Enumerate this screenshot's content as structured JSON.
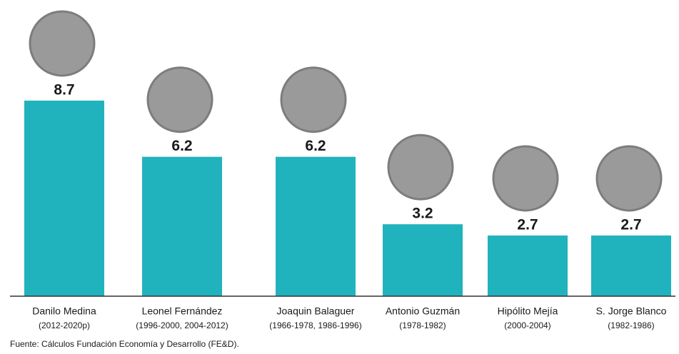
{
  "chart_data": {
    "type": "bar",
    "categories": [
      "Danilo Medina",
      "Leonel Fernández",
      "Joaquin Balaguer",
      "Antonio Guzmán",
      "Hipólito Mejía",
      "S. Jorge Blanco"
    ],
    "periods": [
      "(2012-2020p)",
      "(1996-2000, 2004-2012)",
      "(1966-1978, 1986-1996)",
      "(1978-1982)",
      "(2000-2004)",
      "(1982-1986)"
    ],
    "values": [
      8.7,
      6.2,
      6.2,
      3.2,
      2.7,
      2.7
    ],
    "color": "#21b3bd",
    "ylim": [
      0,
      10
    ],
    "source": "Fuente: Cálculos Fundación Economía y Desarrollo (FE&D)."
  }
}
